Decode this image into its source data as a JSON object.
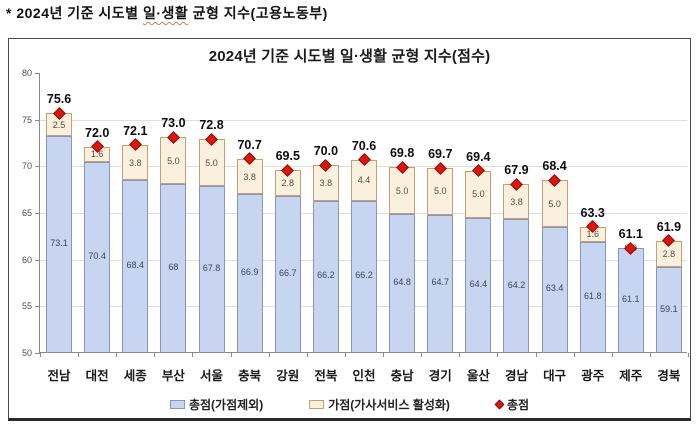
{
  "page_title_parts": {
    "prefix": "* 2024년 기준 시도별 ",
    "highlight": "일·생활",
    "suffix": " 균형 지수(고용노동부)"
  },
  "chart_data": {
    "type": "bar",
    "subtype": "stacked-with-total-marker",
    "title": "2024년 기준 시도별 일·생활 균형 지수(점수)",
    "categories": [
      "전남",
      "대전",
      "세종",
      "부산",
      "서울",
      "충북",
      "강원",
      "전북",
      "인천",
      "충남",
      "경기",
      "울산",
      "경남",
      "대구",
      "광주",
      "제주",
      "경북"
    ],
    "series": [
      {
        "name": "총점(가점제외)",
        "role": "base",
        "values": [
          73.1,
          70.4,
          68.4,
          68,
          67.8,
          66.9,
          66.7,
          66.2,
          66.2,
          64.8,
          64.7,
          64.4,
          64.2,
          63.4,
          61.8,
          61.1,
          59.1
        ],
        "labels": [
          "73.1",
          "70.4",
          "68.4",
          "68",
          "67.8",
          "66.9",
          "66.7",
          "66.2",
          "66.2",
          "64.8",
          "64.7",
          "64.4",
          "64.2",
          "63.4",
          "61.8",
          "61.1",
          "59.1"
        ],
        "color": "#c7d5f0",
        "border_color": "#8495bf"
      },
      {
        "name": "가점(가사서비스 활성화)",
        "role": "bonus",
        "values": [
          2.5,
          1.6,
          3.8,
          5.0,
          5.0,
          3.8,
          2.8,
          3.8,
          4.4,
          5.0,
          5.0,
          5.0,
          3.8,
          5.0,
          1.6,
          0.0,
          2.8
        ],
        "labels": [
          "2.5",
          "1.6",
          "3.8",
          "5.0",
          "5.0",
          "3.8",
          "2.8",
          "3.8",
          "4.4",
          "5.0",
          "5.0",
          "5.0",
          "3.8",
          "5.0",
          "1.6",
          "0.0",
          "2.8"
        ],
        "color": "#f9f0dd",
        "border_color": "#c79e6f"
      },
      {
        "name": "총점",
        "role": "total_marker",
        "marker": "diamond",
        "values": [
          75.6,
          72.0,
          72.1,
          73.0,
          72.8,
          70.7,
          69.5,
          70.0,
          70.6,
          69.8,
          69.7,
          69.4,
          67.9,
          68.4,
          63.3,
          61.1,
          61.9
        ],
        "labels": [
          "75.6",
          "72.0",
          "72.1",
          "73.0",
          "72.8",
          "70.7",
          "69.5",
          "70.0",
          "70.6",
          "69.8",
          "69.7",
          "69.4",
          "67.9",
          "68.4",
          "63.3",
          "61.1",
          "61.9"
        ],
        "color": "#e3120b"
      }
    ],
    "ylim": [
      50,
      80
    ],
    "yticks": [
      80,
      75,
      70,
      65,
      60,
      55,
      50
    ],
    "grid": true,
    "legend_position": "bottom"
  }
}
